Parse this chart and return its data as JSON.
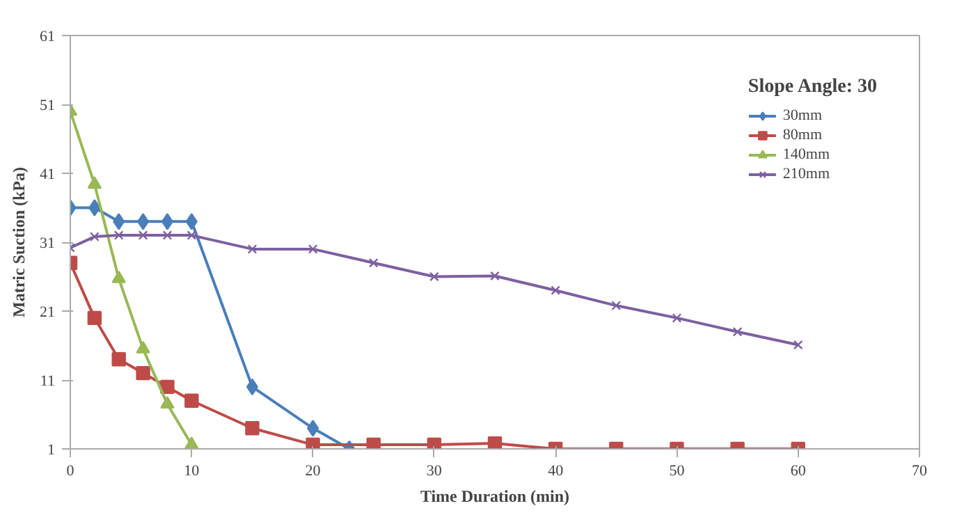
{
  "chart_data": {
    "type": "line",
    "xlabel": "Time Duration (min)",
    "ylabel": "Matric Suction (kPa)",
    "legend_title": "Slope Angle: 30",
    "xlim": [
      0,
      70
    ],
    "xticks": [
      0,
      10,
      20,
      30,
      40,
      50,
      60,
      70
    ],
    "ylim": [
      1,
      61
    ],
    "yticks": [
      1,
      11,
      21,
      31,
      41,
      51,
      61
    ],
    "grid": false,
    "legend": "top right",
    "series": [
      {
        "name": "30mm",
        "color": "#4a7ebb",
        "marker": "diamond",
        "x": [
          0,
          2,
          4,
          6,
          8,
          10,
          15,
          20,
          23
        ],
        "values": [
          36,
          36,
          34,
          34,
          34,
          34,
          10,
          4,
          1
        ]
      },
      {
        "name": "80mm",
        "color": "#be4b48",
        "marker": "square",
        "x": [
          0,
          2,
          4,
          6,
          8,
          10,
          15,
          20,
          25,
          30,
          35,
          40,
          45,
          50,
          55,
          60
        ],
        "values": [
          28,
          20,
          14,
          12,
          10,
          8,
          4,
          1.6,
          1.6,
          1.6,
          1.8,
          1,
          1,
          1,
          1,
          1
        ]
      },
      {
        "name": "140mm",
        "color": "#98b954",
        "marker": "triangle",
        "x": [
          0,
          2,
          4,
          6,
          8,
          10
        ],
        "values": [
          50,
          39.4,
          25.7,
          15.5,
          7.5,
          1.6
        ]
      },
      {
        "name": "210mm",
        "color": "#7d60a0",
        "marker": "cross",
        "x": [
          0,
          2,
          4,
          6,
          8,
          10,
          15,
          20,
          25,
          30,
          35,
          40,
          45,
          50,
          55,
          60
        ],
        "values": [
          30.2,
          31.8,
          32,
          32,
          32,
          32,
          30,
          30,
          28,
          26,
          26.1,
          24,
          21.8,
          20,
          18,
          16.1
        ]
      }
    ]
  }
}
